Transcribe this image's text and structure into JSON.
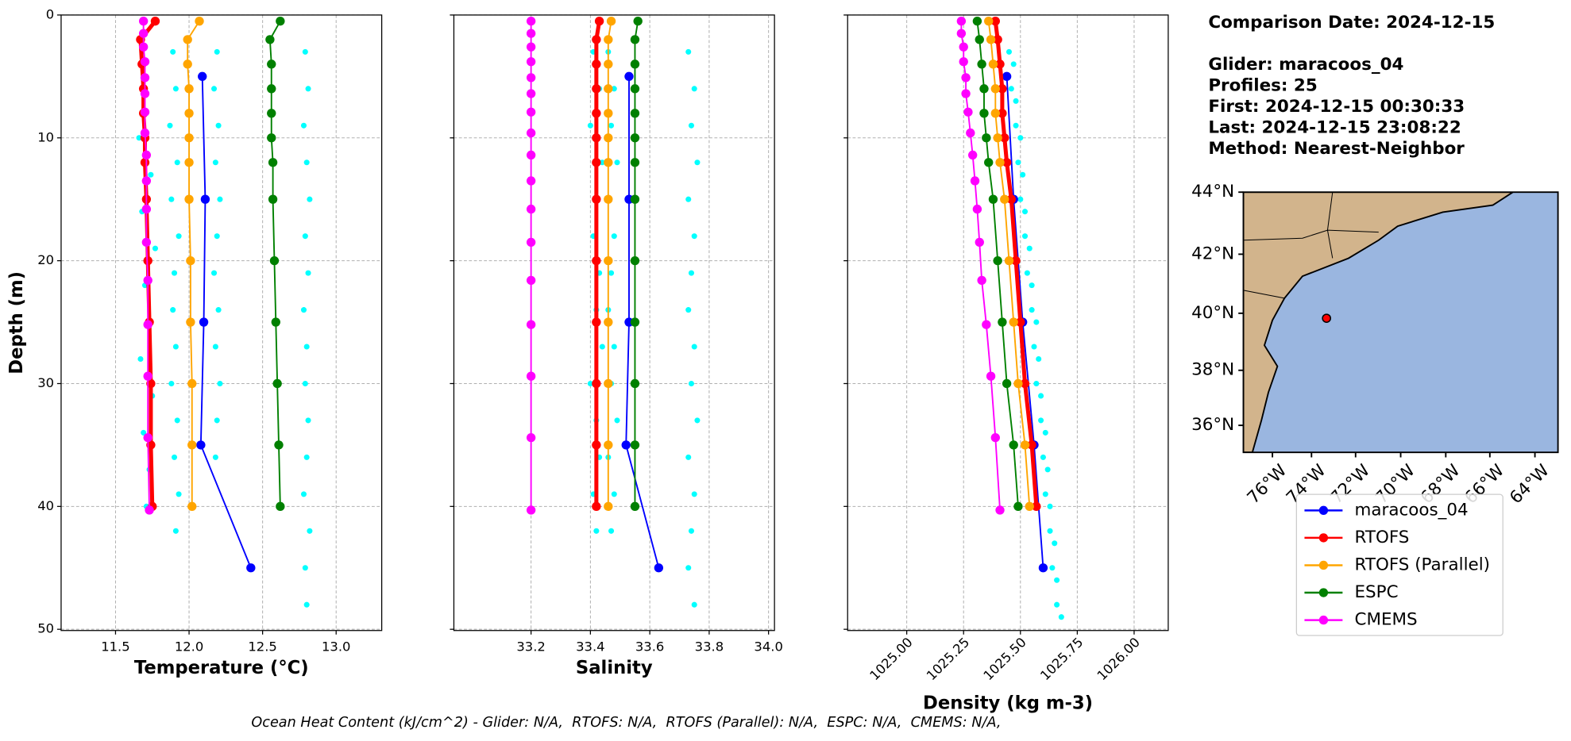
{
  "chart_data": [
    {
      "type": "line",
      "xlabel": "Temperature (°C)",
      "ylabel": "Depth (m)",
      "grid": true,
      "ytick_labels": true,
      "xtick_rotation": 0,
      "xlim": [
        11.13,
        13.31
      ],
      "xticks": [
        11.5,
        {
          "value": 12,
          "label": "12.0"
        },
        12.5,
        {
          "value": 13,
          "label": "13.0"
        }
      ],
      "ylim": [
        50.1,
        0
      ],
      "yticks": [
        0,
        10,
        20,
        30,
        40,
        50
      ],
      "series": [
        {
          "color": "#00ffff",
          "marker": "dot",
          "line": false,
          "x": [
            11.66,
            11.74,
            11.68,
            11.77,
            11.7,
            11.72,
            11.67,
            11.75,
            11.69,
            11.73,
            11.71
          ],
          "y": [
            10,
            13,
            16,
            19,
            22,
            25,
            28,
            31,
            34,
            37,
            40
          ]
        },
        {
          "color": "#00ffff",
          "marker": "dot",
          "line": false,
          "x": [
            11.89,
            11.91,
            11.87,
            11.92,
            11.88,
            11.93,
            11.9,
            11.89,
            11.91,
            11.88,
            11.92,
            11.9,
            11.93,
            11.91
          ],
          "y": [
            3,
            6,
            9,
            12,
            15,
            18,
            21,
            24,
            27,
            30,
            33,
            36,
            39,
            42
          ]
        },
        {
          "color": "#00ffff",
          "marker": "dot",
          "line": false,
          "x": [
            12.19,
            12.17,
            12.2,
            12.18,
            12.21,
            12.19,
            12.17,
            12.2,
            12.18,
            12.21,
            12.19,
            12.18
          ],
          "y": [
            3,
            6,
            9,
            12,
            15,
            18,
            21,
            24,
            27,
            30,
            33,
            36
          ]
        },
        {
          "color": "#00ffff",
          "marker": "dot",
          "line": false,
          "x": [
            12.79,
            12.81,
            12.78,
            12.8,
            12.82,
            12.79,
            12.81,
            12.78,
            12.8,
            12.79,
            12.81,
            12.8,
            12.78,
            12.82,
            12.79,
            12.8
          ],
          "y": [
            3,
            6,
            9,
            12,
            15,
            18,
            21,
            24,
            27,
            30,
            33,
            36,
            39,
            42,
            45,
            48
          ]
        },
        {
          "name": "maracoos_04",
          "color": "#0000ff",
          "marker": "o",
          "line": true,
          "linewidth": 1.5,
          "x": [
            12.09,
            12.11,
            12.1,
            12.08,
            12.42
          ],
          "y": [
            5,
            15,
            25,
            35,
            45
          ]
        },
        {
          "name": "RTOFS",
          "color": "#ff0000",
          "marker": "o",
          "line": true,
          "linewidth": 4,
          "x": [
            11.77,
            11.67,
            11.68,
            11.69,
            11.69,
            11.7,
            11.7,
            11.71,
            11.72,
            11.73,
            11.74,
            11.74,
            11.75
          ],
          "y": [
            0.5,
            2,
            4,
            6,
            8,
            10,
            12,
            15,
            20,
            25,
            30,
            35,
            40
          ]
        },
        {
          "name": "RTOFS (Parallel)",
          "color": "#ffa500",
          "marker": "o",
          "line": true,
          "linewidth": 1.5,
          "x": [
            12.07,
            11.99,
            11.99,
            12.0,
            12.0,
            12.0,
            12.0,
            12.0,
            12.01,
            12.01,
            12.02,
            12.02,
            12.02
          ],
          "y": [
            0.5,
            2,
            4,
            6,
            8,
            10,
            12,
            15,
            20,
            25,
            30,
            35,
            40
          ]
        },
        {
          "name": "ESPC",
          "color": "#008000",
          "marker": "o",
          "line": true,
          "linewidth": 1.5,
          "x": [
            12.62,
            12.55,
            12.56,
            12.56,
            12.56,
            12.56,
            12.57,
            12.57,
            12.58,
            12.59,
            12.6,
            12.61,
            12.62
          ],
          "y": [
            0.5,
            2,
            4,
            6,
            8,
            10,
            12,
            15,
            20,
            25,
            30,
            35,
            40
          ]
        },
        {
          "name": "CMEMS",
          "color": "#ff00ff",
          "marker": "o",
          "line": true,
          "linewidth": 1.5,
          "x": [
            11.69,
            11.69,
            11.69,
            11.7,
            11.7,
            11.7,
            11.7,
            11.7,
            11.71,
            11.71,
            11.71,
            11.71,
            11.72,
            11.72,
            11.72,
            11.72,
            11.73
          ],
          "y": [
            0.5,
            1.5,
            2.6,
            3.8,
            5.1,
            6.4,
            7.9,
            9.6,
            11.4,
            13.5,
            15.8,
            18.5,
            21.6,
            25.2,
            29.4,
            34.4,
            40.3
          ]
        }
      ]
    },
    {
      "type": "line",
      "xlabel": "Salinity",
      "grid": true,
      "ytick_labels": false,
      "xtick_rotation": 0,
      "xlim": [
        32.94,
        34.02
      ],
      "xticks": [
        33.2,
        33.4,
        33.6,
        33.8,
        {
          "value": 34,
          "label": "34.0"
        }
      ],
      "ylim": [
        50.1,
        0
      ],
      "yticks": [
        0,
        10,
        20,
        30,
        40,
        50
      ],
      "series": [
        {
          "color": "#00ffff",
          "marker": "dot",
          "line": false,
          "x": [
            33.41,
            33.43,
            33.4,
            33.44,
            33.42,
            33.41,
            33.43,
            33.42,
            33.44,
            33.4,
            33.42,
            33.43,
            33.41,
            33.42
          ],
          "y": [
            3,
            6,
            9,
            12,
            15,
            18,
            21,
            24,
            27,
            30,
            33,
            36,
            39,
            42
          ]
        },
        {
          "color": "#00ffff",
          "marker": "dot",
          "line": false,
          "x": [
            33.46,
            33.48,
            33.47,
            33.49,
            33.46,
            33.48,
            33.47,
            33.46,
            33.48,
            33.47,
            33.49,
            33.46,
            33.48,
            33.47
          ],
          "y": [
            3,
            6,
            9,
            12,
            15,
            18,
            21,
            24,
            27,
            30,
            33,
            36,
            39,
            42
          ]
        },
        {
          "color": "#00ffff",
          "marker": "dot",
          "line": false,
          "x": [
            33.73,
            33.75,
            33.74,
            33.76,
            33.73,
            33.75,
            33.74,
            33.73,
            33.75,
            33.74,
            33.76,
            33.73,
            33.75,
            33.74,
            33.73,
            33.75
          ],
          "y": [
            3,
            6,
            9,
            12,
            15,
            18,
            21,
            24,
            27,
            30,
            33,
            36,
            39,
            42,
            45,
            48
          ]
        },
        {
          "color": "#0000ff",
          "marker": "o",
          "line": true,
          "linewidth": 1.5,
          "x": [
            33.53,
            33.53,
            33.53,
            33.52,
            33.63
          ],
          "y": [
            5,
            15,
            25,
            35,
            45
          ]
        },
        {
          "color": "#ff0000",
          "marker": "o",
          "line": true,
          "linewidth": 4,
          "x": [
            33.43,
            33.42,
            33.42,
            33.42,
            33.42,
            33.42,
            33.42,
            33.42,
            33.42,
            33.42,
            33.42,
            33.42,
            33.42
          ],
          "y": [
            0.5,
            2,
            4,
            6,
            8,
            10,
            12,
            15,
            20,
            25,
            30,
            35,
            40
          ]
        },
        {
          "color": "#ffa500",
          "marker": "o",
          "line": true,
          "linewidth": 1.5,
          "x": [
            33.47,
            33.46,
            33.46,
            33.46,
            33.46,
            33.46,
            33.46,
            33.46,
            33.46,
            33.46,
            33.46,
            33.46,
            33.46
          ],
          "y": [
            0.5,
            2,
            4,
            6,
            8,
            10,
            12,
            15,
            20,
            25,
            30,
            35,
            40
          ]
        },
        {
          "color": "#008000",
          "marker": "o",
          "line": true,
          "linewidth": 1.5,
          "x": [
            33.56,
            33.55,
            33.55,
            33.55,
            33.55,
            33.55,
            33.55,
            33.55,
            33.55,
            33.55,
            33.55,
            33.55,
            33.55
          ],
          "y": [
            0.5,
            2,
            4,
            6,
            8,
            10,
            12,
            15,
            20,
            25,
            30,
            35,
            40
          ]
        },
        {
          "color": "#ff00ff",
          "marker": "o",
          "line": true,
          "linewidth": 1.5,
          "x": [
            33.2,
            33.2,
            33.2,
            33.2,
            33.2,
            33.2,
            33.2,
            33.2,
            33.2,
            33.2,
            33.2,
            33.2,
            33.2,
            33.2,
            33.2,
            33.2,
            33.2
          ],
          "y": [
            0.5,
            1.5,
            2.6,
            3.8,
            5.1,
            6.4,
            7.9,
            9.6,
            11.4,
            13.5,
            15.8,
            18.5,
            21.6,
            25.2,
            29.4,
            34.4,
            40.3
          ]
        }
      ]
    },
    {
      "type": "line",
      "xlabel": "Density (kg m-3)",
      "grid": true,
      "ytick_labels": false,
      "xtick_rotation": 45,
      "xlim": [
        1024.74,
        1026.15
      ],
      "xticks": [
        {
          "value": 1025,
          "label": "1025.00"
        },
        1025.25,
        {
          "value": 1025.5,
          "label": "1025.50"
        },
        1025.75,
        {
          "value": 1026,
          "label": "1026.00"
        }
      ],
      "ylim": [
        50.1,
        0
      ],
      "yticks": [
        0,
        10,
        20,
        30,
        40,
        50
      ],
      "series": [
        {
          "color": "#00ffff",
          "marker": "dot",
          "line": false,
          "x": [
            1025.45,
            1025.46,
            1025.48,
            1025.49,
            1025.5,
            1025.52,
            1025.53,
            1025.55,
            1025.56,
            1025.57,
            1025.59,
            1025.6,
            1025.61,
            1025.63,
            1025.64,
            1025.66
          ],
          "y": [
            3,
            6,
            9,
            12,
            15,
            18,
            21,
            24,
            27,
            30,
            33,
            36,
            39,
            42,
            45,
            48
          ]
        },
        {
          "color": "#00ffff",
          "marker": "dot",
          "line": false,
          "x": [
            1025.47,
            1025.48,
            1025.5,
            1025.51,
            1025.52,
            1025.54,
            1025.55,
            1025.57,
            1025.58,
            1025.59,
            1025.61,
            1025.62,
            1025.63,
            1025.65,
            1025.66,
            1025.68
          ],
          "y": [
            4,
            7,
            10,
            13,
            16,
            19,
            22,
            25,
            28,
            31,
            34,
            37,
            40,
            43,
            46,
            49
          ]
        },
        {
          "color": "#0000ff",
          "marker": "o",
          "line": true,
          "linewidth": 1.5,
          "x": [
            1025.44,
            1025.47,
            1025.51,
            1025.56,
            1025.6
          ],
          "y": [
            5,
            15,
            25,
            35,
            45
          ]
        },
        {
          "color": "#ff0000",
          "marker": "o",
          "line": true,
          "linewidth": 4,
          "x": [
            1025.39,
            1025.4,
            1025.41,
            1025.42,
            1025.42,
            1025.43,
            1025.44,
            1025.46,
            1025.48,
            1025.5,
            1025.52,
            1025.55,
            1025.57
          ],
          "y": [
            0.5,
            2,
            4,
            6,
            8,
            10,
            12,
            15,
            20,
            25,
            30,
            35,
            40
          ]
        },
        {
          "color": "#ffa500",
          "marker": "o",
          "line": true,
          "linewidth": 1.5,
          "x": [
            1025.36,
            1025.37,
            1025.38,
            1025.39,
            1025.39,
            1025.4,
            1025.41,
            1025.43,
            1025.45,
            1025.47,
            1025.49,
            1025.52,
            1025.54
          ],
          "y": [
            0.5,
            2,
            4,
            6,
            8,
            10,
            12,
            15,
            20,
            25,
            30,
            35,
            40
          ]
        },
        {
          "color": "#008000",
          "marker": "o",
          "line": true,
          "linewidth": 1.5,
          "x": [
            1025.31,
            1025.32,
            1025.33,
            1025.34,
            1025.34,
            1025.35,
            1025.36,
            1025.38,
            1025.4,
            1025.42,
            1025.44,
            1025.47,
            1025.49
          ],
          "y": [
            0.5,
            2,
            4,
            6,
            8,
            10,
            12,
            15,
            20,
            25,
            30,
            35,
            40
          ]
        },
        {
          "color": "#ff00ff",
          "marker": "o",
          "line": true,
          "linewidth": 1.5,
          "x": [
            1025.24,
            1025.24,
            1025.25,
            1025.25,
            1025.26,
            1025.26,
            1025.27,
            1025.28,
            1025.29,
            1025.3,
            1025.31,
            1025.32,
            1025.33,
            1025.35,
            1025.37,
            1025.39,
            1025.41
          ],
          "y": [
            0.5,
            1.5,
            2.6,
            3.8,
            5.1,
            6.4,
            7.9,
            9.6,
            11.4,
            13.5,
            15.8,
            18.5,
            21.6,
            25.2,
            29.4,
            34.4,
            40.3
          ]
        }
      ]
    }
  ],
  "info": [
    "Comparison Date: 2024-12-15",
    "Glider: maracoos_04",
    "Profiles: 25",
    "First: 2024-12-15 00:30:33",
    "Last: 2024-12-15 23:08:22",
    "Method: Nearest-Neighbor"
  ],
  "map": {
    "lat_labels": [
      "44°N",
      "42°N",
      "40°N",
      "38°N",
      "36°N"
    ],
    "lon_labels": [
      "76°W",
      "74°W",
      "72°W",
      "70°W",
      "68°W",
      "66°W",
      "64°W"
    ]
  },
  "footnote": "Ocean Heat Content (kJ/cm^2) - Glider: N/A,  RTOFS: N/A,  RTOFS (Parallel): N/A,  ESPC: N/A,  CMEMS: N/A,"
}
